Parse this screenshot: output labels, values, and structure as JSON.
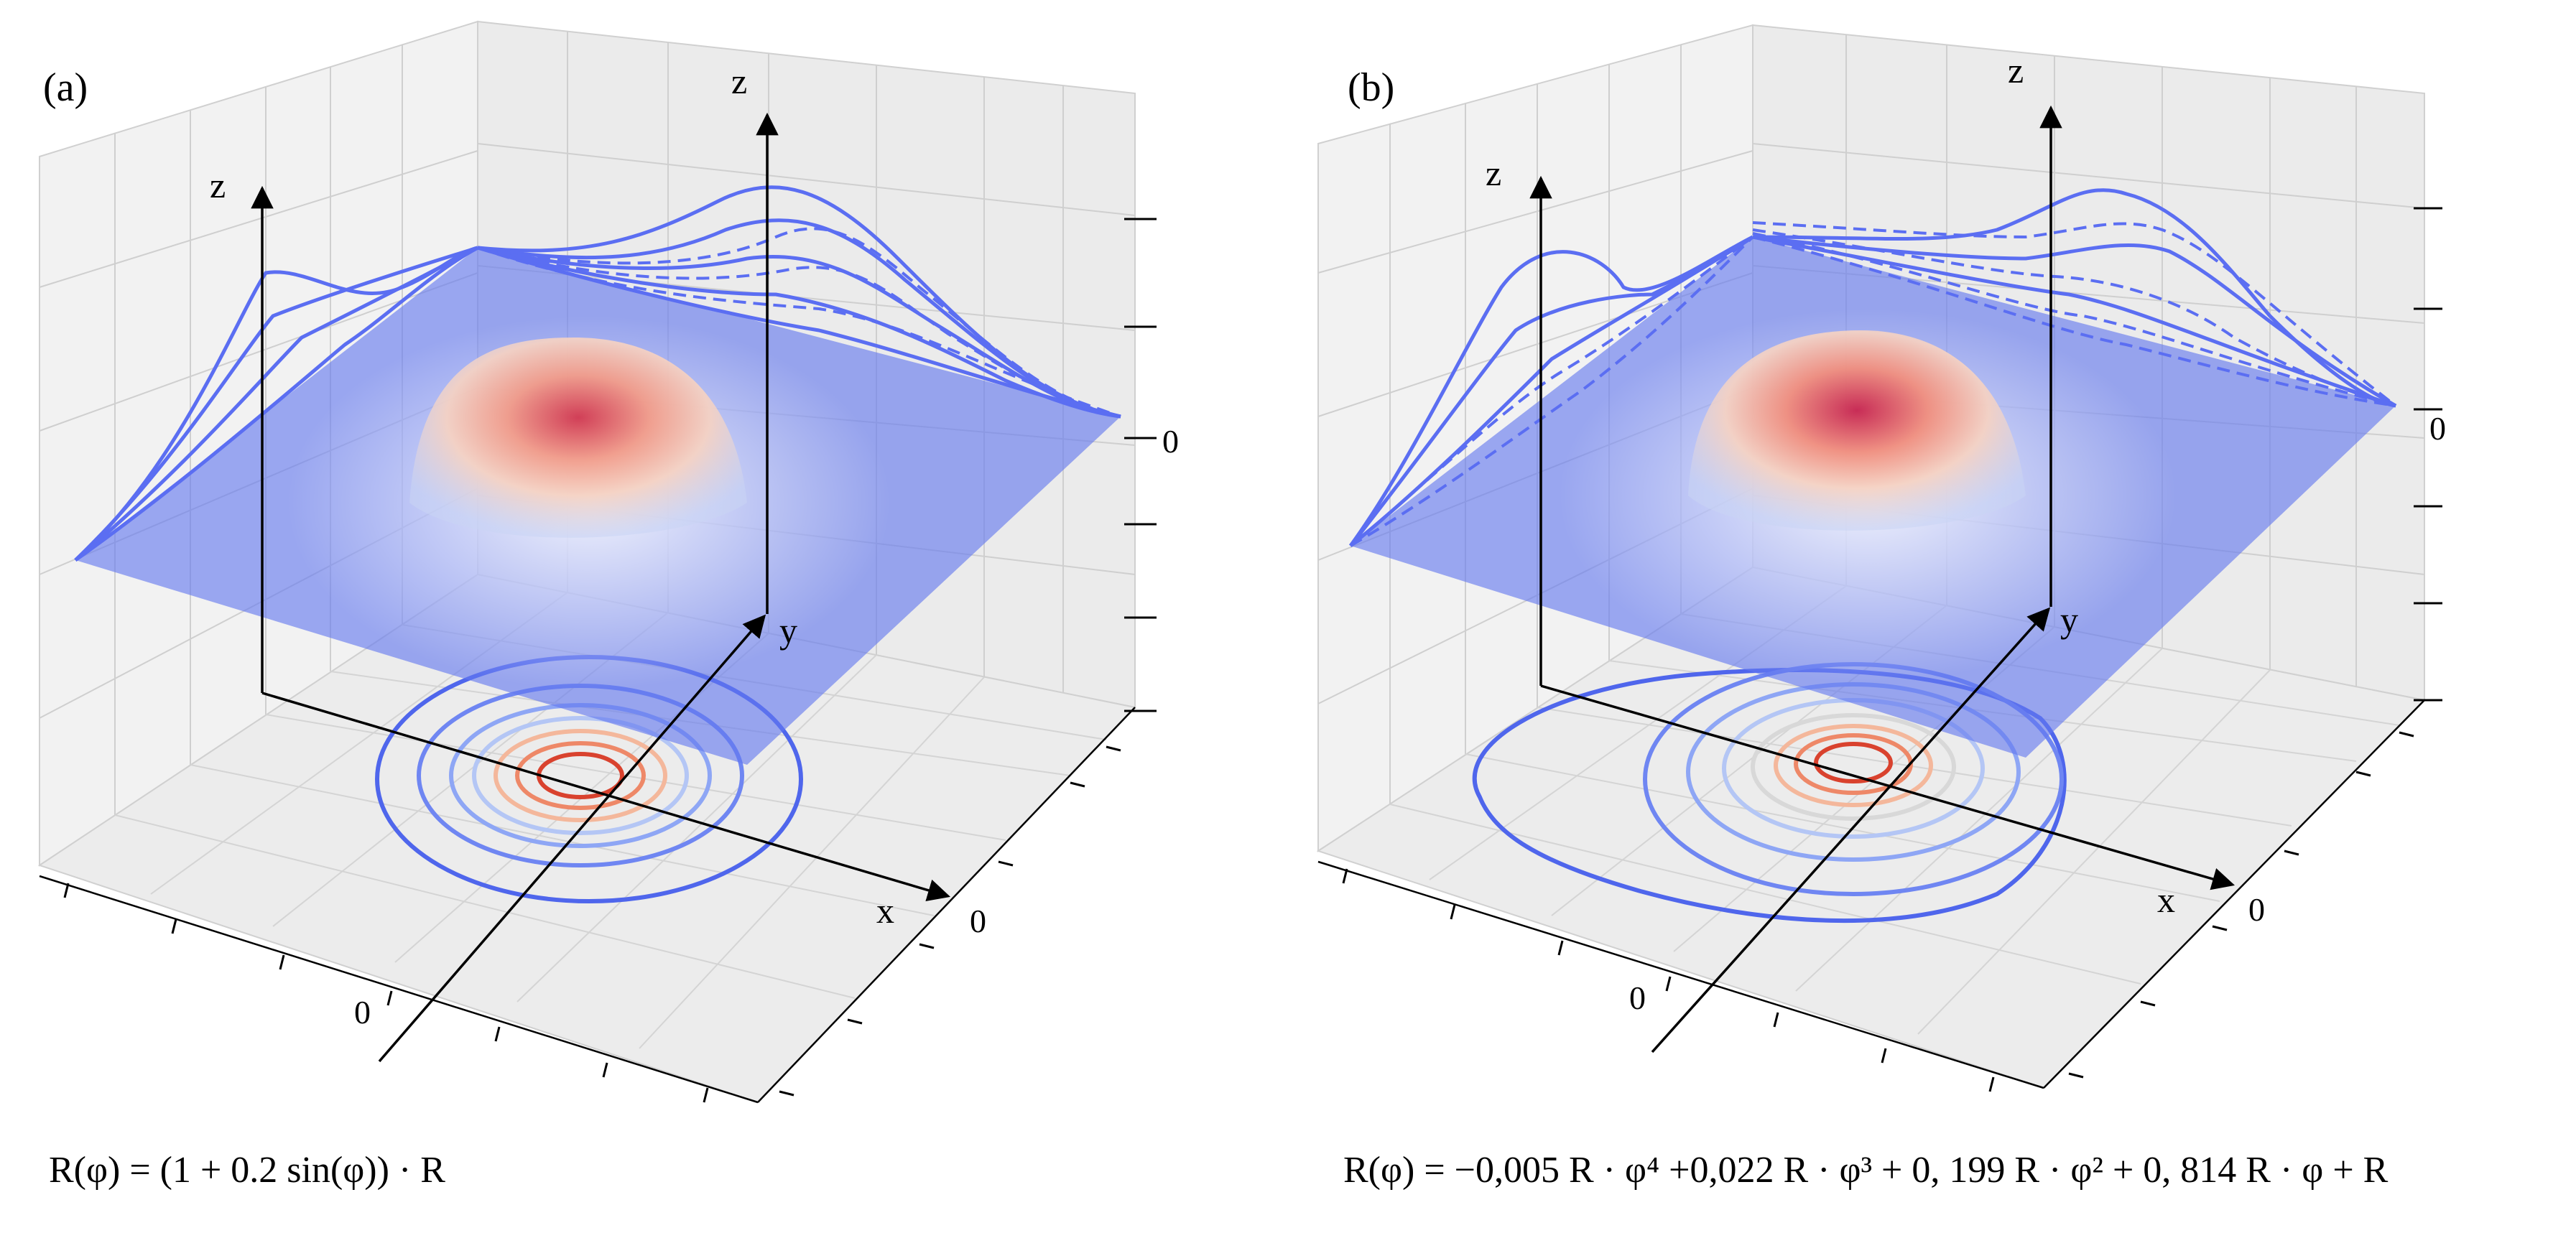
{
  "figure": {
    "panels": [
      {
        "id": "a",
        "label": "(a)",
        "axes": {
          "x": "x",
          "y": "y",
          "z": "z"
        },
        "tick_labels": {
          "z_zero": "0",
          "x_zero": "0",
          "y_zero": "0"
        },
        "formula_text": "R(φ) =  (1 + 0.2 sin(φ)) · R"
      },
      {
        "id": "b",
        "label": "(b)",
        "axes": {
          "x": "x",
          "y": "y",
          "z": "z"
        },
        "tick_labels": {
          "z_zero": "0",
          "x_zero": "0",
          "y_zero": "0"
        },
        "formula_text": "R(φ) = −0,005 R · φ⁴ +0,022 R · φ³ + 0, 199 R · φ² + 0, 814 R · φ + R"
      }
    ]
  },
  "colors": {
    "surface_blue": "#5a6cf0",
    "surface_warm": "#e8604c",
    "line_blue": "#5b6ef2",
    "contour_red": "#d9422e",
    "grid": "#c8c8c8"
  }
}
